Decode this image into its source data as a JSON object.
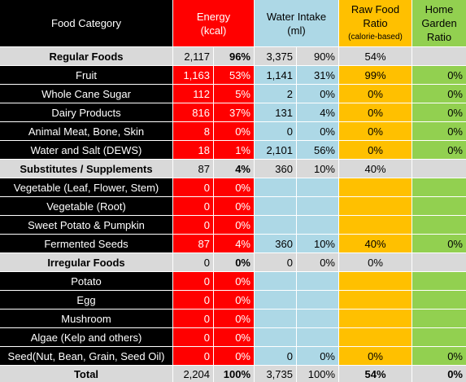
{
  "header": {
    "food_category": "Food Category",
    "energy": "Energy",
    "energy_unit": "(kcal)",
    "water": "Water Intake",
    "water_unit": "(ml)",
    "raw_food": "Raw Food",
    "raw_food2": "Ratio",
    "raw_food_note": "(calorie-based)",
    "garden1": "Home",
    "garden2": "Garden",
    "garden3": "Ratio"
  },
  "rows": [
    {
      "type": "sum",
      "name": "Regular Foods",
      "energy": "2,117",
      "energy_pct": "96%",
      "water": "3,375",
      "water_pct": "90%",
      "raw": "54%",
      "garden": ""
    },
    {
      "type": "item",
      "name": "Fruit",
      "energy": "1,163",
      "energy_pct": "53%",
      "water": "1,141",
      "water_pct": "31%",
      "raw": "99%",
      "garden": "0%"
    },
    {
      "type": "item",
      "name": "Whole Cane Sugar",
      "energy": "112",
      "energy_pct": "5%",
      "water": "2",
      "water_pct": "0%",
      "raw": "0%",
      "garden": "0%"
    },
    {
      "type": "item",
      "name": "Dairy Products",
      "energy": "816",
      "energy_pct": "37%",
      "water": "131",
      "water_pct": "4%",
      "raw": "0%",
      "garden": "0%"
    },
    {
      "type": "item",
      "name": "Animal Meat, Bone, Skin",
      "energy": "8",
      "energy_pct": "0%",
      "water": "0",
      "water_pct": "0%",
      "raw": "0%",
      "garden": "0%"
    },
    {
      "type": "item",
      "name": "Water and Salt (DEWS)",
      "energy": "18",
      "energy_pct": "1%",
      "water": "2,101",
      "water_pct": "56%",
      "raw": "0%",
      "garden": "0%"
    },
    {
      "type": "sum",
      "name": "Substitutes / Supplements",
      "energy": "87",
      "energy_pct": "4%",
      "water": "360",
      "water_pct": "10%",
      "raw": "40%",
      "garden": ""
    },
    {
      "type": "item",
      "name": "Vegetable (Leaf, Flower, Stem)",
      "energy": "0",
      "energy_pct": "0%",
      "water": "",
      "water_pct": "",
      "raw": "",
      "garden": ""
    },
    {
      "type": "item",
      "name": "Vegetable (Root)",
      "energy": "0",
      "energy_pct": "0%",
      "water": "",
      "water_pct": "",
      "raw": "",
      "garden": ""
    },
    {
      "type": "item",
      "name": "Sweet Potato & Pumpkin",
      "energy": "0",
      "energy_pct": "0%",
      "water": "",
      "water_pct": "",
      "raw": "",
      "garden": ""
    },
    {
      "type": "item",
      "name": "Fermented Seeds",
      "energy": "87",
      "energy_pct": "4%",
      "water": "360",
      "water_pct": "10%",
      "raw": "40%",
      "garden": "0%"
    },
    {
      "type": "sum",
      "name": "Irregular Foods",
      "energy": "0",
      "energy_pct": "0%",
      "water": "0",
      "water_pct": "0%",
      "raw": "0%",
      "garden": ""
    },
    {
      "type": "item",
      "name": "Potato",
      "energy": "0",
      "energy_pct": "0%",
      "water": "",
      "water_pct": "",
      "raw": "",
      "garden": ""
    },
    {
      "type": "item",
      "name": "Egg",
      "energy": "0",
      "energy_pct": "0%",
      "water": "",
      "water_pct": "",
      "raw": "",
      "garden": ""
    },
    {
      "type": "item",
      "name": "Mushroom",
      "energy": "0",
      "energy_pct": "0%",
      "water": "",
      "water_pct": "",
      "raw": "",
      "garden": ""
    },
    {
      "type": "item",
      "name": "Algae (Kelp and others)",
      "energy": "0",
      "energy_pct": "0%",
      "water": "",
      "water_pct": "",
      "raw": "",
      "garden": ""
    },
    {
      "type": "item",
      "name": "Seed(Nut, Bean, Grain, Seed Oil)",
      "energy": "0",
      "energy_pct": "0%",
      "water": "0",
      "water_pct": "0%",
      "raw": "0%",
      "garden": "0%"
    },
    {
      "type": "total",
      "name": "Total",
      "energy": "2,204",
      "energy_pct": "100%",
      "water": "3,735",
      "water_pct": "100%",
      "raw": "54%",
      "garden": "0%"
    }
  ]
}
